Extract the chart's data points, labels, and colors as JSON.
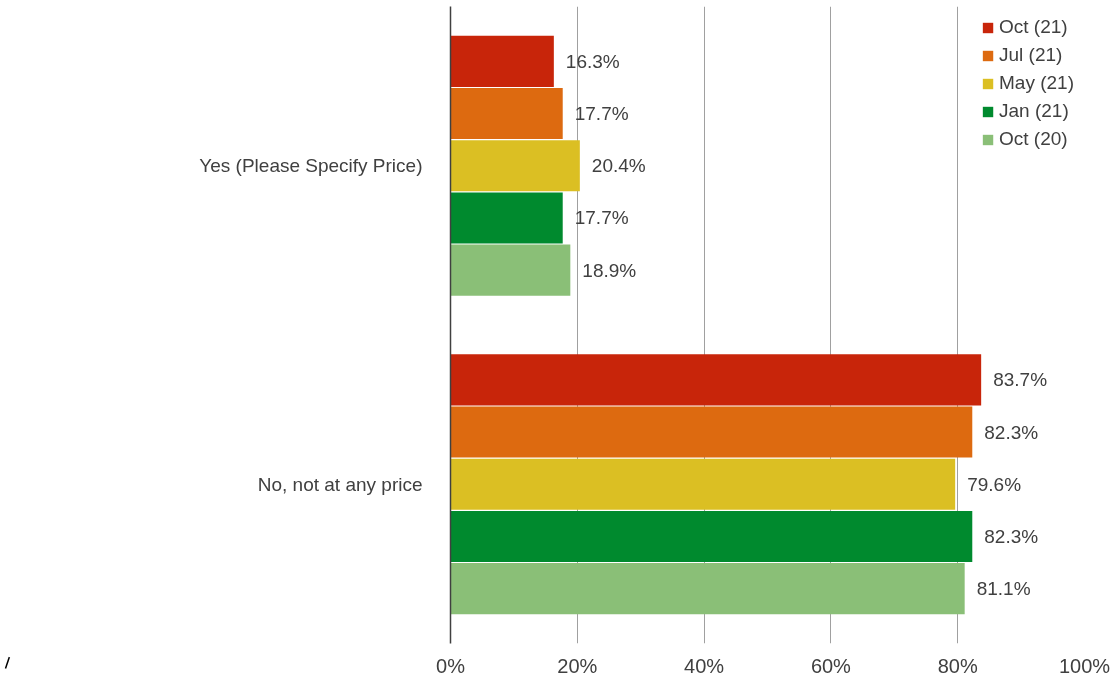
{
  "chart_data": {
    "type": "bar",
    "orientation": "horizontal",
    "categories": [
      "Yes (Please Specify Price)",
      "No, not at any price"
    ],
    "series": [
      {
        "name": "Oct (21)",
        "color": "#c8250a",
        "values": [
          16.3,
          83.7
        ],
        "value_labels": [
          "16.3%",
          "83.7%"
        ]
      },
      {
        "name": "Jul (21)",
        "color": "#dd6a10",
        "values": [
          17.7,
          82.3
        ],
        "value_labels": [
          "17.7%",
          "82.3%"
        ]
      },
      {
        "name": "May (21)",
        "color": "#dbbf23",
        "values": [
          20.4,
          79.6
        ],
        "value_labels": [
          "20.4%",
          "79.6%"
        ]
      },
      {
        "name": "Jan (21)",
        "color": "#008a2e",
        "values": [
          17.7,
          82.3
        ],
        "value_labels": [
          "17.7%",
          "82.3%"
        ]
      },
      {
        "name": "Oct (20)",
        "color": "#8abf77",
        "values": [
          18.9,
          81.1
        ],
        "value_labels": [
          "18.9%",
          "81.1%"
        ]
      }
    ],
    "xlim": [
      0,
      100
    ],
    "xticks": [
      {
        "value": 0,
        "label": "0%"
      },
      {
        "value": 20,
        "label": "20%"
      },
      {
        "value": 40,
        "label": "40%"
      },
      {
        "value": 60,
        "label": "60%"
      },
      {
        "value": 80,
        "label": "80%"
      },
      {
        "value": 100,
        "label": "100%"
      }
    ],
    "grid": "x",
    "legend": "top right"
  }
}
